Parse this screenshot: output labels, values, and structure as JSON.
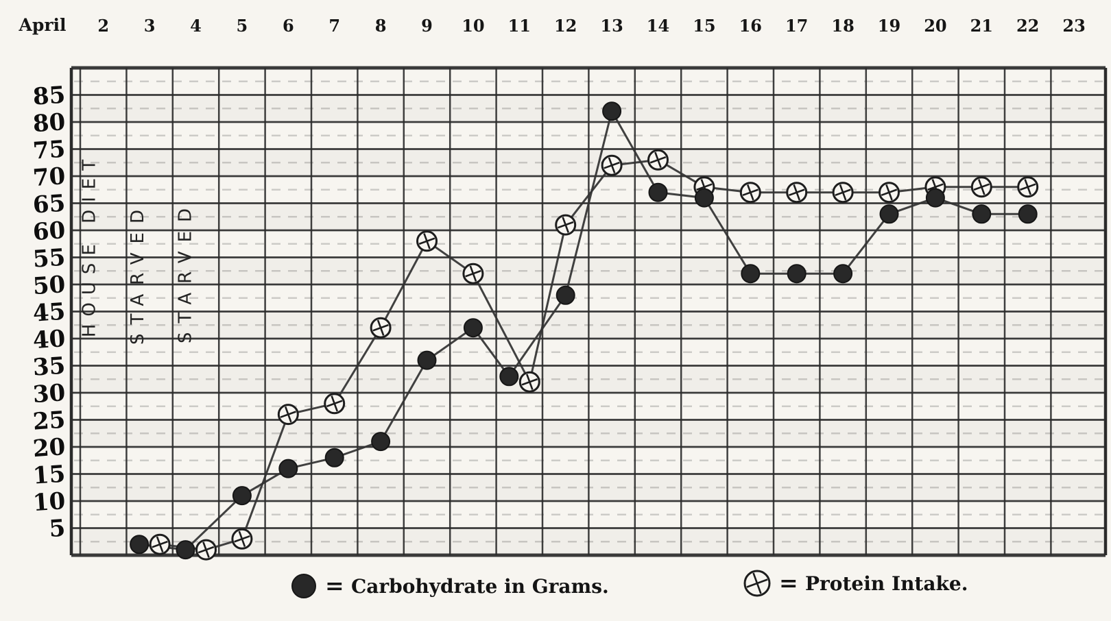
{
  "page": {
    "paper_color": "#f7f5f0",
    "ink_color": "#232323",
    "grid_color": "#2b2b2b",
    "series_line_color": "#333333"
  },
  "top_axis": {
    "prefix": "April",
    "dates": [
      "2",
      "3",
      "4",
      "5",
      "6",
      "7",
      "8",
      "9",
      "10",
      "11",
      "12",
      "13",
      "14",
      "15",
      "16",
      "17",
      "18",
      "19",
      "20",
      "21",
      "22",
      "23"
    ]
  },
  "y_axis": {
    "ticks": [
      "85",
      "80",
      "75",
      "70",
      "65",
      "60",
      "55",
      "50",
      "45",
      "40",
      "35",
      "30",
      "25",
      "20",
      "15",
      "10",
      "5"
    ]
  },
  "column_annotations": [
    {
      "text": "HOUSE DIET",
      "column_date": "2"
    },
    {
      "text": "STARVED",
      "column_date": "3"
    },
    {
      "text": "STARVED",
      "column_date": "4"
    }
  ],
  "legend": [
    {
      "marker": "filled-circle",
      "equals": "=",
      "label": "Carbohydrate in Grams."
    },
    {
      "marker": "circle-cross",
      "equals": "=",
      "label": "Protein Intake."
    }
  ],
  "chart_data": {
    "type": "line",
    "title": "",
    "xlabel": "April",
    "ylabel": "",
    "x": [
      3,
      4,
      5,
      6,
      7,
      8,
      9,
      10,
      11,
      12,
      13,
      14,
      15,
      16,
      17,
      18,
      19,
      20,
      21,
      22
    ],
    "x_domain": [
      2,
      23
    ],
    "ylim": [
      0,
      90
    ],
    "y_gridline_step": 5,
    "grid": true,
    "legend_position": "bottom",
    "series": [
      {
        "name": "Carbohydrate in Grams",
        "marker": "filled-circle",
        "values": [
          2,
          1,
          11,
          16,
          18,
          21,
          36,
          42,
          33,
          48,
          82,
          67,
          66,
          52,
          52,
          52,
          63,
          66,
          63,
          63
        ]
      },
      {
        "name": "Protein Intake",
        "marker": "circle-cross",
        "values": [
          2,
          1,
          3,
          26,
          28,
          42,
          58,
          52,
          32,
          61,
          72,
          73,
          68,
          67,
          67,
          67,
          67,
          68,
          68,
          68
        ]
      }
    ]
  }
}
